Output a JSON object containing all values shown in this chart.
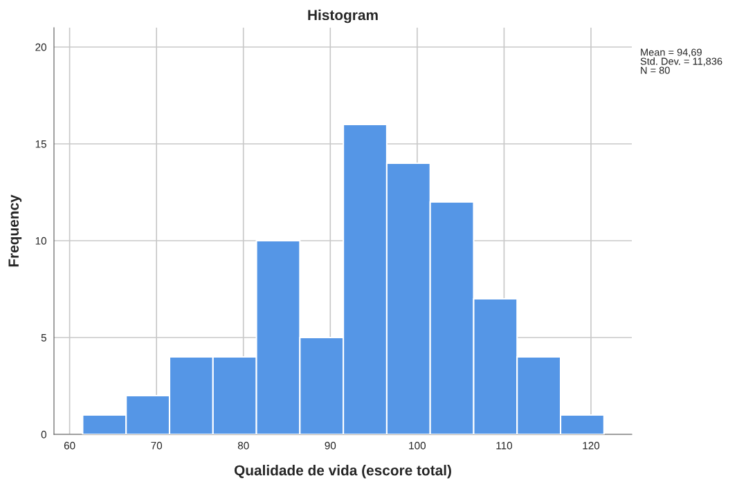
{
  "chart_data": {
    "type": "histogram",
    "title": "Histogram",
    "xlabel": "Qualidade de vida (escore total)",
    "ylabel": "Frequency",
    "bins": [
      61.5,
      66.5,
      71.5,
      76.5,
      81.5,
      86.5,
      91.5,
      96.5,
      101.5,
      106.5,
      111.5,
      116.5,
      121.5
    ],
    "values": [
      1,
      2,
      4,
      4,
      10,
      5,
      16,
      14,
      12,
      7,
      4,
      1
    ],
    "color": "#5596e6",
    "xlim": [
      58.2,
      124.7
    ],
    "xticks": [
      60,
      70,
      80,
      90,
      100,
      110,
      120
    ],
    "ylim": [
      0,
      21
    ],
    "yticks": [
      0,
      5,
      10,
      15,
      20
    ],
    "grid": true,
    "annotations": [
      "Mean = 94,69\nStd. Dev. = 11,836\nN = 80"
    ]
  }
}
